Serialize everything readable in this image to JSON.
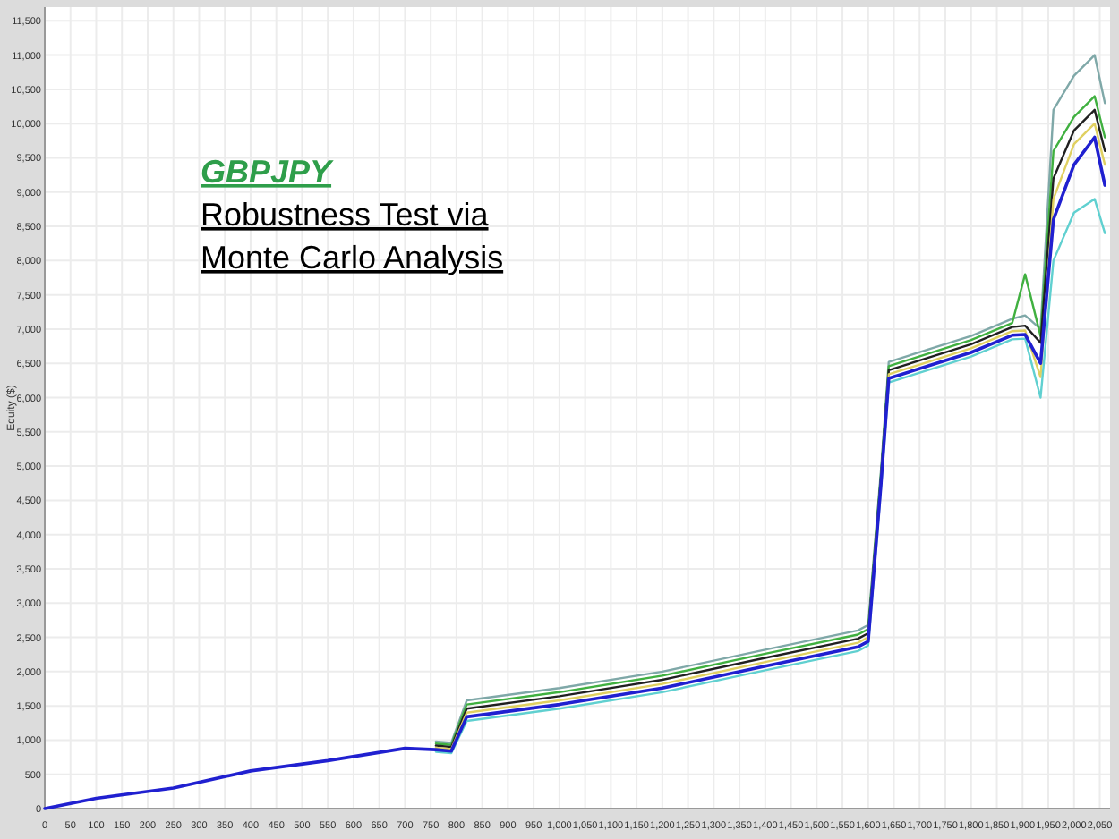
{
  "chart_data": {
    "type": "line",
    "ylabel": "Equity ($)",
    "annotations": [
      "GBPJPY",
      "Robustness Test via",
      "Monte Carlo Analysis"
    ],
    "x": [
      0,
      100,
      250,
      400,
      550,
      700,
      760,
      790,
      820,
      1000,
      1200,
      1400,
      1580,
      1600,
      1625,
      1640,
      1800,
      1880,
      1905,
      1935,
      1960,
      2000,
      2040,
      2060
    ],
    "series": [
      {
        "color": "#7fa8a8",
        "values": [
          null,
          null,
          null,
          null,
          null,
          null,
          980,
          960,
          1580,
          1760,
          2000,
          2320,
          2600,
          2680,
          4950,
          6520,
          6900,
          7150,
          7200,
          7000,
          10200,
          10700,
          11000,
          10300
        ]
      },
      {
        "color": "#40b040",
        "values": [
          null,
          null,
          null,
          null,
          null,
          null,
          950,
          930,
          1520,
          1700,
          1940,
          2260,
          2540,
          2620,
          4900,
          6460,
          6840,
          7090,
          7800,
          6900,
          9600,
          10100,
          10400,
          9800
        ]
      },
      {
        "color": "#202020",
        "values": [
          null,
          null,
          null,
          null,
          null,
          null,
          920,
          900,
          1460,
          1640,
          1880,
          2200,
          2480,
          2560,
          4850,
          6400,
          6780,
          7030,
          7050,
          6800,
          9200,
          9900,
          10200,
          9600
        ]
      },
      {
        "color": "#e0d060",
        "values": [
          null,
          null,
          null,
          null,
          null,
          null,
          890,
          870,
          1400,
          1580,
          1820,
          2140,
          2420,
          2500,
          4800,
          6340,
          6720,
          6970,
          6980,
          6300,
          8900,
          9700,
          10000,
          9400
        ]
      },
      {
        "color": "#60d0d0",
        "values": [
          null,
          null,
          null,
          null,
          null,
          null,
          830,
          810,
          1280,
          1460,
          1700,
          2020,
          2300,
          2380,
          4700,
          6220,
          6600,
          6850,
          6860,
          6000,
          8000,
          8700,
          8900,
          8400
        ]
      },
      {
        "color": "#2020d0",
        "values": [
          0,
          150,
          300,
          550,
          700,
          880,
          860,
          840,
          1340,
          1520,
          1760,
          2080,
          2360,
          2440,
          4750,
          6280,
          6660,
          6910,
          6920,
          6500,
          8600,
          9400,
          9800,
          9100
        ]
      }
    ],
    "xlim": [
      0,
      2070
    ],
    "ylim": [
      0,
      11700
    ],
    "xticks": [
      0,
      50,
      100,
      150,
      200,
      250,
      300,
      350,
      400,
      450,
      500,
      550,
      600,
      650,
      700,
      750,
      800,
      850,
      900,
      950,
      {
        "value": 1000,
        "label": "1,000"
      },
      {
        "value": 1050,
        "label": "1,050"
      },
      {
        "value": 1100,
        "label": "1,100"
      },
      {
        "value": 1150,
        "label": "1,150"
      },
      {
        "value": 1200,
        "label": "1,200"
      },
      {
        "value": 1250,
        "label": "1,250"
      },
      {
        "value": 1300,
        "label": "1,300"
      },
      {
        "value": 1350,
        "label": "1,350"
      },
      {
        "value": 1400,
        "label": "1,400"
      },
      {
        "value": 1450,
        "label": "1,450"
      },
      {
        "value": 1500,
        "label": "1,500"
      },
      {
        "value": 1550,
        "label": "1,550"
      },
      {
        "value": 1600,
        "label": "1,600"
      },
      {
        "value": 1650,
        "label": "1,650"
      },
      {
        "value": 1700,
        "label": "1,700"
      },
      {
        "value": 1750,
        "label": "1,750"
      },
      {
        "value": 1800,
        "label": "1,800"
      },
      {
        "value": 1850,
        "label": "1,850"
      },
      {
        "value": 1900,
        "label": "1,900"
      },
      {
        "value": 1950,
        "label": "1,950"
      },
      {
        "value": 2000,
        "label": "2,000"
      },
      {
        "value": 2050,
        "label": "2,050"
      }
    ],
    "yticks": [
      0,
      500,
      {
        "value": 1000,
        "label": "1,000"
      },
      {
        "value": 1500,
        "label": "1,500"
      },
      {
        "value": 2000,
        "label": "2,000"
      },
      {
        "value": 2500,
        "label": "2,500"
      },
      {
        "value": 3000,
        "label": "3,000"
      },
      {
        "value": 3500,
        "label": "3,500"
      },
      {
        "value": 4000,
        "label": "4,000"
      },
      {
        "value": 4500,
        "label": "4,500"
      },
      {
        "value": 5000,
        "label": "5,000"
      },
      {
        "value": 5500,
        "label": "5,500"
      },
      {
        "value": 6000,
        "label": "6,000"
      },
      {
        "value": 6500,
        "label": "6,500"
      },
      {
        "value": 7000,
        "label": "7,000"
      },
      {
        "value": 7500,
        "label": "7,500"
      },
      {
        "value": 8000,
        "label": "8,000"
      },
      {
        "value": 8500,
        "label": "8,500"
      },
      {
        "value": 9000,
        "label": "9,000"
      },
      {
        "value": 9500,
        "label": "9,500"
      },
      {
        "value": 10000,
        "label": "10,000"
      },
      {
        "value": 10500,
        "label": "10,500"
      },
      {
        "value": 11000,
        "label": "11,000"
      },
      {
        "value": 11500,
        "label": "11,500"
      }
    ],
    "grid": true,
    "marker": "none",
    "line_style": "solid"
  }
}
